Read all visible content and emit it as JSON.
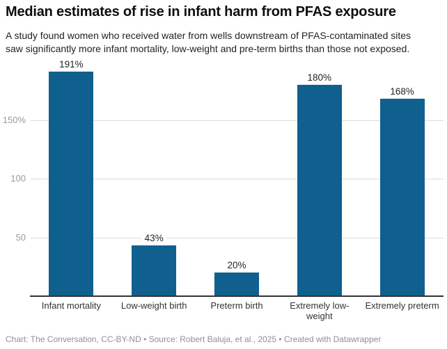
{
  "header": {
    "title": "Median estimates of rise in infant harm from PFAS exposure",
    "subtitle_line1": "A study found women who received water from wells downstream of PFAS-contaminated sites",
    "subtitle_line2": "saw significantly more infant mortality, low-weight and pre-term births than those not exposed."
  },
  "chart_data": {
    "type": "bar",
    "title": "Median estimates of rise in infant harm from PFAS exposure",
    "categories": [
      "Infant mortality",
      "Low-weight birth",
      "Preterm birth",
      "Extremely low-weight",
      "Extremely preterm"
    ],
    "values": [
      191,
      43,
      20,
      180,
      168
    ],
    "value_labels": [
      "191%",
      "43%",
      "20%",
      "180%",
      "168%"
    ],
    "xlabel": "",
    "ylabel": "",
    "ylim": [
      0,
      200
    ],
    "yticks": [
      {
        "value": 50,
        "label": "50"
      },
      {
        "value": 100,
        "label": "100"
      },
      {
        "value": 150,
        "label": "150%"
      }
    ],
    "grid": true,
    "legend": "none",
    "bar_color": "#10608f"
  },
  "footer": {
    "text": "Chart: The Conversation, CC-BY-ND • Source: Robert Baluja, et al., 2025 • Created with Datawrapper"
  },
  "colors": {
    "bar": "#10608f",
    "gridline": "#dcdcdc",
    "axis_tick_label": "#9a9a9a",
    "baseline": "#333333",
    "title": "#0d0d0d",
    "subtitle": "#222222",
    "category_label": "#333333",
    "value_label": "#222222",
    "footer_text": "#8f8f8f",
    "background": "#ffffff"
  }
}
